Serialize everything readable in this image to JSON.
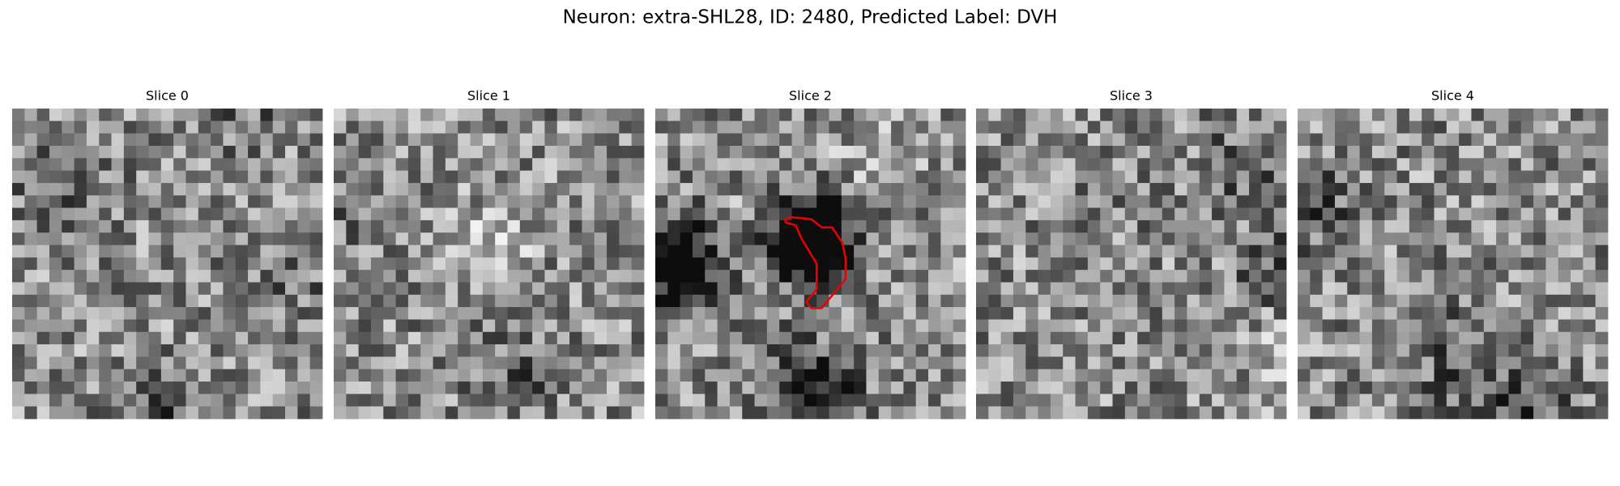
{
  "title": "Neuron: extra-SHL28, ID: 2480, Predicted Label: DVH",
  "slices": [
    {
      "title": "Slice 0"
    },
    {
      "title": "Slice 1"
    },
    {
      "title": "Slice 2"
    },
    {
      "title": "Slice 3"
    },
    {
      "title": "Slice 4"
    }
  ]
}
